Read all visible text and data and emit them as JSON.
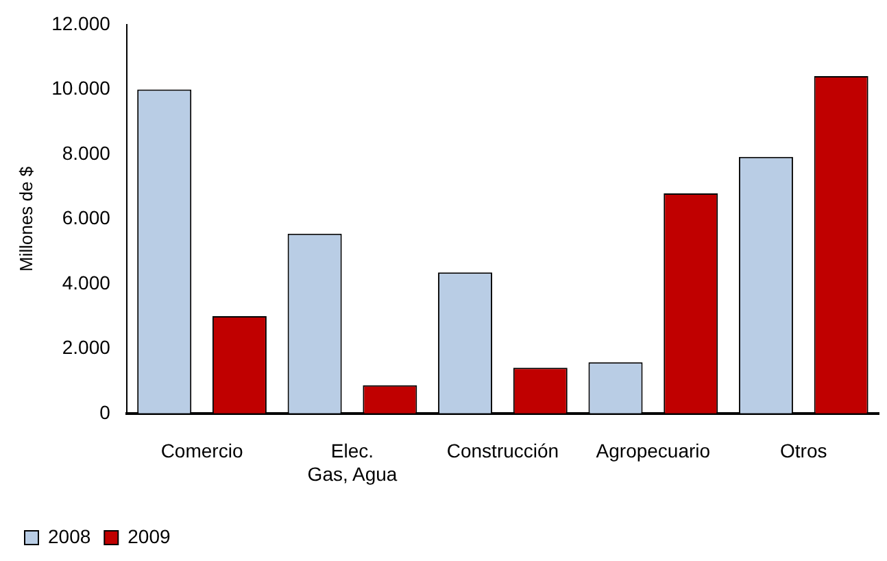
{
  "chart_data": {
    "type": "bar",
    "ylabel": "Millones de $",
    "categories": [
      "Comercio",
      "Elec.\nGas, Agua",
      "Construcción",
      "Agropecuario",
      "Otros"
    ],
    "series": [
      {
        "name": "2008",
        "color": "#b9cde5",
        "values": [
          10000,
          5550,
          4350,
          1580,
          7920
        ]
      },
      {
        "name": "2009",
        "color": "#c00000",
        "values": [
          3000,
          870,
          1410,
          6790,
          10410
        ]
      }
    ],
    "ylim": [
      0,
      12000
    ],
    "yticks": [
      {
        "value": 0,
        "label": "0"
      },
      {
        "value": 2000,
        "label": "2.000"
      },
      {
        "value": 4000,
        "label": "4.000"
      },
      {
        "value": 6000,
        "label": "6.000"
      },
      {
        "value": 8000,
        "label": "8.000"
      },
      {
        "value": 10000,
        "label": "10.000"
      },
      {
        "value": 12000,
        "label": "12.000"
      }
    ],
    "grid": false,
    "legend": "bottom left"
  }
}
